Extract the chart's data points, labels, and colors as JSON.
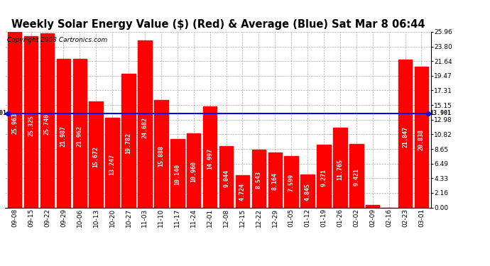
{
  "title": "Weekly Solar Energy Value ($) (Red) & Average (Blue) Sat Mar 8 06:44",
  "copyright": "Copyright 2008 Cartronics.com",
  "categories": [
    "09-08",
    "09-15",
    "09-22",
    "09-29",
    "10-06",
    "10-13",
    "10-20",
    "10-27",
    "11-03",
    "11-10",
    "11-17",
    "11-24",
    "12-01",
    "12-08",
    "12-15",
    "12-22",
    "12-29",
    "01-05",
    "01-12",
    "01-19",
    "01-26",
    "02-02",
    "02-09",
    "02-16",
    "02-23",
    "03-01"
  ],
  "values": [
    25.963,
    25.325,
    25.74,
    21.987,
    21.962,
    15.672,
    13.247,
    19.782,
    24.682,
    15.888,
    10.14,
    10.96,
    14.997,
    9.044,
    4.724,
    8.543,
    8.164,
    7.599,
    4.845,
    9.271,
    11.765,
    9.421,
    0.317,
    0.0,
    21.847,
    20.838
  ],
  "average": 13.901,
  "bar_color": "#ff0000",
  "avg_line_color": "#0000ff",
  "background_color": "#ffffff",
  "grid_color": "#888888",
  "ylim": [
    0,
    25.96
  ],
  "yticks": [
    0.0,
    2.16,
    4.33,
    6.49,
    8.65,
    10.82,
    12.98,
    15.15,
    17.31,
    19.47,
    21.64,
    23.8,
    25.96
  ],
  "avg_label": "13.901",
  "title_fontsize": 10.5,
  "tick_fontsize": 6.5,
  "label_fontsize": 6.0,
  "copyright_fontsize": 6.5,
  "bar_width": 0.85
}
